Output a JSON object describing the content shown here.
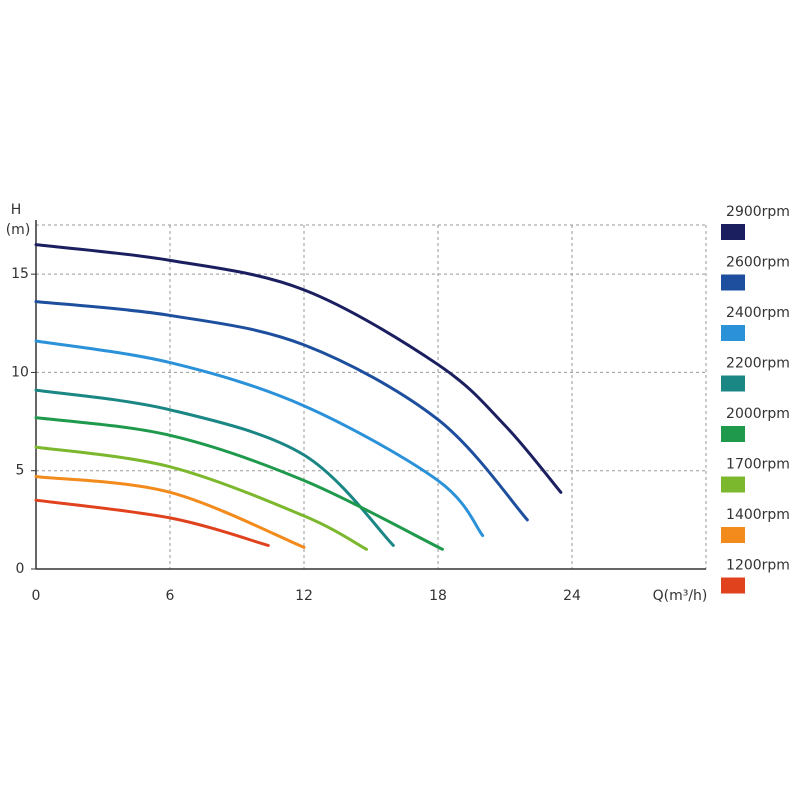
{
  "chart_data": {
    "type": "line",
    "y_label": "H",
    "y_unit": "(m)",
    "x_label": "Q(m³/h)",
    "xlim": [
      0,
      30
    ],
    "xticks": [
      0,
      6,
      12,
      18,
      24
    ],
    "ylim": [
      0,
      17.5
    ],
    "yticks": [
      0,
      5,
      10,
      15
    ],
    "grid": true,
    "series": [
      {
        "name": "2900rpm",
        "color": "#1b1f60",
        "x": [
          0,
          6,
          12,
          18,
          21,
          23.5
        ],
        "values": [
          16.5,
          15.7,
          14.2,
          10.4,
          7.3,
          3.9
        ]
      },
      {
        "name": "2600rpm",
        "color": "#1d4f9e",
        "x": [
          0,
          6,
          12,
          18,
          22
        ],
        "values": [
          13.6,
          12.9,
          11.4,
          7.6,
          2.5
        ]
      },
      {
        "name": "2400rpm",
        "color": "#2b92da",
        "x": [
          0,
          6,
          12,
          18,
          20
        ],
        "values": [
          11.6,
          10.5,
          8.3,
          4.5,
          1.7
        ]
      },
      {
        "name": "2200rpm",
        "color": "#1b8784",
        "x": [
          0,
          6,
          12,
          16
        ],
        "values": [
          9.1,
          8.1,
          5.8,
          1.2
        ]
      },
      {
        "name": "2000rpm",
        "color": "#1f9a4c",
        "x": [
          0,
          6,
          12,
          18.2
        ],
        "values": [
          7.7,
          6.8,
          4.5,
          1.0
        ]
      },
      {
        "name": "1700rpm",
        "color": "#7cb82d",
        "x": [
          0,
          6,
          12,
          14.8
        ],
        "values": [
          6.2,
          5.2,
          2.7,
          1.0
        ]
      },
      {
        "name": "1400rpm",
        "color": "#f28a1c",
        "x": [
          0,
          6,
          12
        ],
        "values": [
          4.7,
          3.9,
          1.1
        ]
      },
      {
        "name": "1200rpm",
        "color": "#e0421d",
        "x": [
          0,
          6,
          10.4
        ],
        "values": [
          3.5,
          2.6,
          1.2
        ]
      }
    ]
  }
}
